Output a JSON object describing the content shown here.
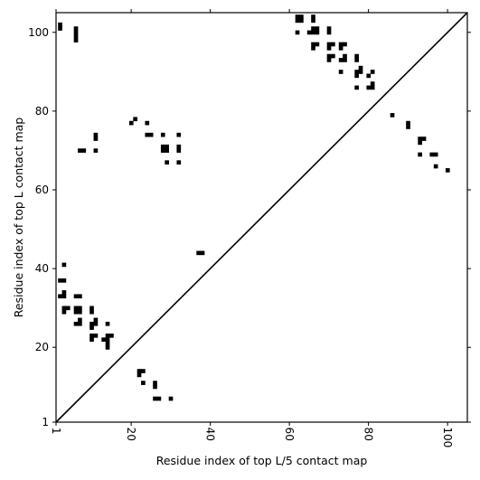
{
  "chart_data": {
    "type": "heatmap",
    "title": "",
    "xlabel": "Residue index of top L/5 contact map",
    "ylabel": "Residue index of top L contact map",
    "xlim": [
      1,
      105
    ],
    "ylim": [
      1,
      105
    ],
    "xticks": [
      1,
      20,
      40,
      60,
      80,
      100
    ],
    "yticks": [
      1,
      20,
      40,
      60,
      80,
      100
    ],
    "x_tick_rotation": "vertical",
    "diagonal": {
      "from": [
        1,
        1
      ],
      "to": [
        105,
        105
      ],
      "color": "#000000"
    },
    "cell_color": "#000000",
    "grid": false,
    "points": [
      [
        2,
        101
      ],
      [
        2,
        102
      ],
      [
        6,
        98
      ],
      [
        6,
        99
      ],
      [
        6,
        100
      ],
      [
        6,
        101
      ],
      [
        62,
        103
      ],
      [
        62,
        104
      ],
      [
        63,
        103
      ],
      [
        63,
        104
      ],
      [
        66,
        103
      ],
      [
        66,
        104
      ],
      [
        62,
        100
      ],
      [
        65,
        100
      ],
      [
        66,
        100
      ],
      [
        66,
        101
      ],
      [
        67,
        100
      ],
      [
        67,
        101
      ],
      [
        66,
        96
      ],
      [
        66,
        97
      ],
      [
        67,
        97
      ],
      [
        70,
        100
      ],
      [
        70,
        101
      ],
      [
        70,
        96
      ],
      [
        70,
        97
      ],
      [
        71,
        97
      ],
      [
        70,
        93
      ],
      [
        70,
        94
      ],
      [
        71,
        94
      ],
      [
        73,
        96
      ],
      [
        73,
        97
      ],
      [
        74,
        97
      ],
      [
        73,
        93
      ],
      [
        74,
        93
      ],
      [
        74,
        94
      ],
      [
        73,
        90
      ],
      [
        77,
        93
      ],
      [
        77,
        94
      ],
      [
        77,
        90
      ],
      [
        77,
        89
      ],
      [
        78,
        90
      ],
      [
        78,
        91
      ],
      [
        80,
        89
      ],
      [
        81,
        90
      ],
      [
        77,
        86
      ],
      [
        80,
        86
      ],
      [
        81,
        86
      ],
      [
        81,
        87
      ],
      [
        86,
        79
      ],
      [
        90,
        76
      ],
      [
        90,
        77
      ],
      [
        93,
        72
      ],
      [
        93,
        73
      ],
      [
        94,
        73
      ],
      [
        93,
        69
      ],
      [
        96,
        69
      ],
      [
        97,
        69
      ],
      [
        97,
        66
      ],
      [
        100,
        65
      ],
      [
        20,
        77
      ],
      [
        21,
        78
      ],
      [
        24,
        77
      ],
      [
        24,
        74
      ],
      [
        25,
        74
      ],
      [
        28,
        74
      ],
      [
        28,
        70
      ],
      [
        28,
        71
      ],
      [
        29,
        70
      ],
      [
        29,
        71
      ],
      [
        32,
        70
      ],
      [
        32,
        71
      ],
      [
        32,
        74
      ],
      [
        29,
        67
      ],
      [
        32,
        67
      ],
      [
        7,
        70
      ],
      [
        8,
        70
      ],
      [
        11,
        70
      ],
      [
        11,
        73
      ],
      [
        11,
        74
      ],
      [
        37,
        44
      ],
      [
        38,
        44
      ],
      [
        3,
        41
      ],
      [
        2,
        37
      ],
      [
        3,
        37
      ],
      [
        2,
        33
      ],
      [
        3,
        33
      ],
      [
        3,
        34
      ],
      [
        6,
        33
      ],
      [
        7,
        33
      ],
      [
        3,
        29
      ],
      [
        3,
        30
      ],
      [
        4,
        30
      ],
      [
        6,
        29
      ],
      [
        6,
        30
      ],
      [
        7,
        29
      ],
      [
        7,
        30
      ],
      [
        10,
        29
      ],
      [
        10,
        30
      ],
      [
        6,
        26
      ],
      [
        7,
        26
      ],
      [
        7,
        27
      ],
      [
        10,
        25
      ],
      [
        10,
        26
      ],
      [
        11,
        26
      ],
      [
        11,
        27
      ],
      [
        14,
        26
      ],
      [
        10,
        22
      ],
      [
        10,
        23
      ],
      [
        11,
        23
      ],
      [
        13,
        22
      ],
      [
        14,
        20
      ],
      [
        14,
        21
      ],
      [
        14,
        22
      ],
      [
        14,
        23
      ],
      [
        15,
        23
      ],
      [
        22,
        13
      ],
      [
        22,
        14
      ],
      [
        23,
        14
      ],
      [
        23,
        11
      ],
      [
        26,
        10
      ],
      [
        26,
        11
      ],
      [
        26,
        7
      ],
      [
        27,
        7
      ],
      [
        30,
        7
      ]
    ]
  }
}
